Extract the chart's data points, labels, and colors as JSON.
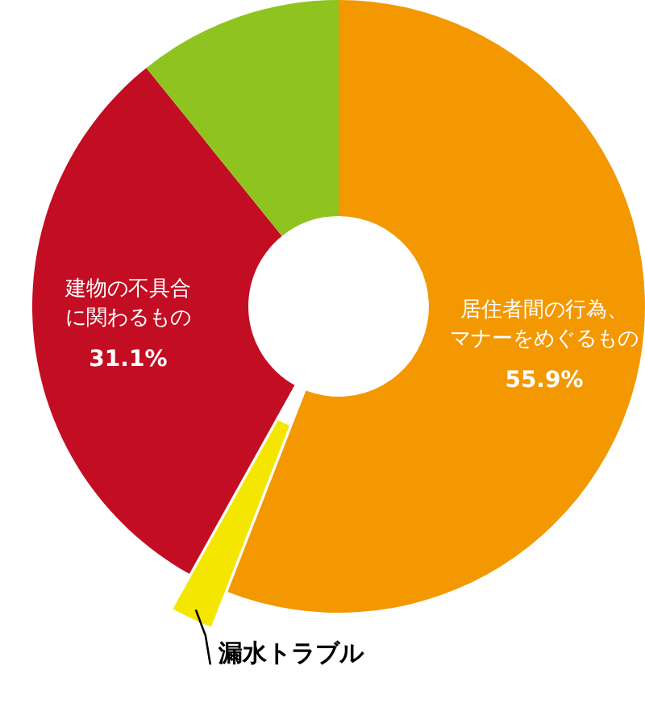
{
  "chart_data": {
    "type": "donut",
    "categories": [
      "居住者間の行為、マナーをめぐるもの",
      "漏水トラブル",
      "建物の不具合に関わるもの",
      null
    ],
    "values": [
      55.9,
      2.2,
      31.1,
      10.8
    ],
    "colors": [
      "#f39800",
      "#f5e600",
      "#c30d23",
      "#8fc31f"
    ],
    "value_labels": [
      "55.9%",
      null,
      "31.1%",
      null
    ],
    "legend": false
  }
}
